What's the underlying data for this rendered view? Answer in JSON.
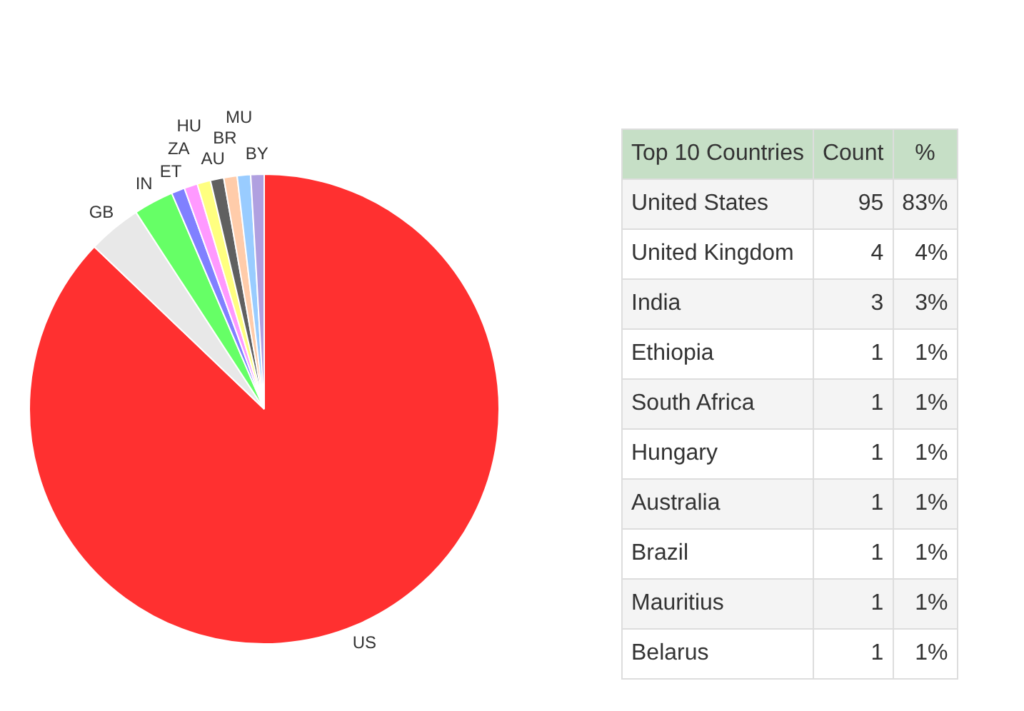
{
  "chart_data": [
    {
      "type": "pie",
      "categories": [
        "US",
        "GB",
        "IN",
        "ET",
        "ZA",
        "HU",
        "AU",
        "BR",
        "MU",
        "BY"
      ],
      "values": [
        87.14,
        3.67,
        2.75,
        0.92,
        0.92,
        0.92,
        0.92,
        0.92,
        0.92,
        0.92
      ],
      "colors": [
        "#ff3030",
        "#e8e8e8",
        "#66ff66",
        "#8080ff",
        "#ff99ff",
        "#ffff80",
        "#606060",
        "#ffccaa",
        "#99ccff",
        "#b0a0e0"
      ],
      "legend": false
    },
    {
      "type": "other",
      "title": "Top 10 Countries",
      "data_labels": true,
      "annotations": [
        "Count",
        "%"
      ],
      "categories": [
        "United States",
        "United Kingdom",
        "India",
        "Ethiopia",
        "South Africa",
        "Hungary",
        "Australia",
        "Brazil",
        "Mauritius",
        "Belarus"
      ],
      "series": [
        {
          "values": [
            95,
            4,
            3,
            1,
            1,
            1,
            1,
            1,
            1,
            1
          ]
        },
        {
          "values": [
            83,
            4,
            3,
            1,
            1,
            1,
            1,
            1,
            1,
            1
          ],
          "value_labels": [
            "83%",
            "4%",
            "3%",
            "1%",
            "1%",
            "1%",
            "1%",
            "1%",
            "1%",
            "1%"
          ]
        }
      ]
    }
  ]
}
